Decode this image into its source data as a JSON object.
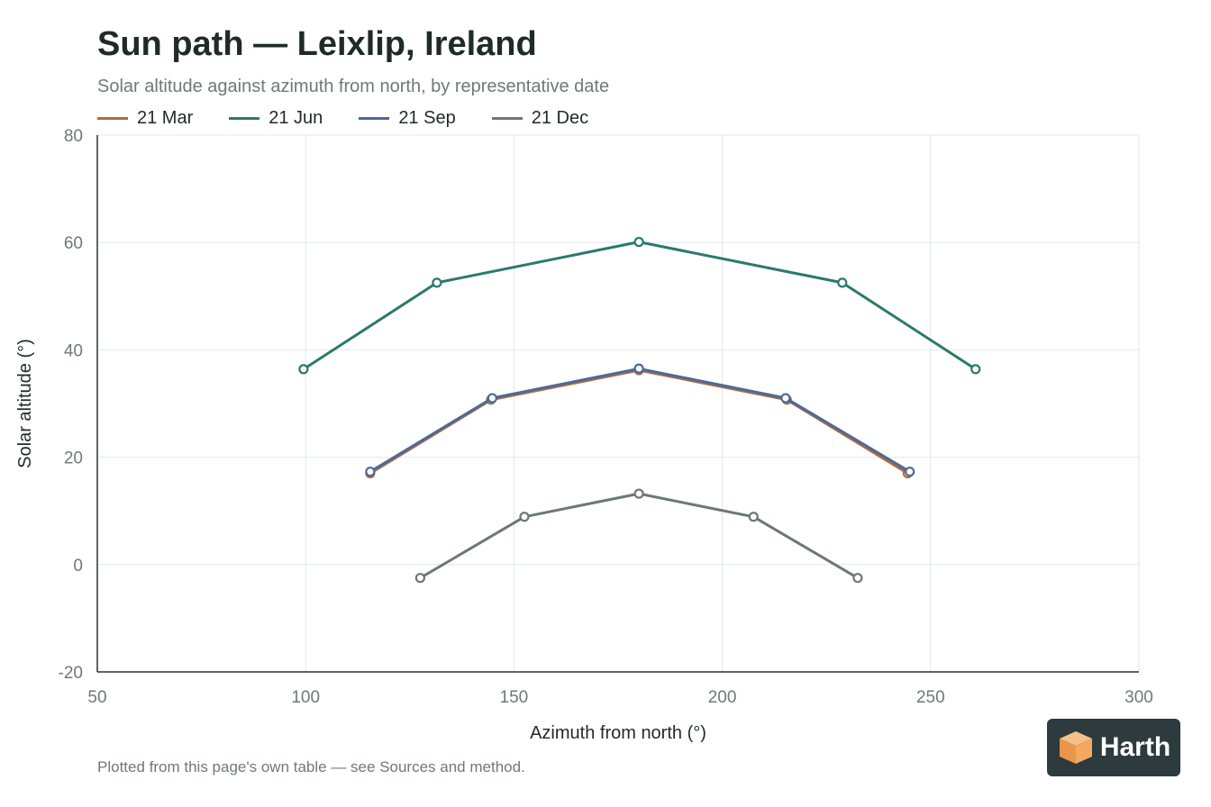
{
  "colors": {
    "mar": "#b4693a",
    "jun": "#2a7a6c",
    "sep": "#4a6a9a",
    "dec": "#6c7873",
    "grid": "#e4e8e7",
    "axis": "#2b3431",
    "tick_text": "#6c7b76"
  },
  "chart_data": {
    "type": "line",
    "title": "Sun path — Leixlip, Ireland",
    "subtitle": "Solar altitude against azimuth from north, by representative date",
    "xlabel": "Azimuth from north (°)",
    "ylabel": "Solar altitude (°)",
    "xlim": [
      50,
      300
    ],
    "ylim": [
      -20,
      80
    ],
    "x_ticks": [
      "50",
      "100",
      "150",
      "200",
      "250",
      "300"
    ],
    "y_ticks": [
      "-20",
      "0",
      "20",
      "40",
      "60",
      "80"
    ],
    "grid": true,
    "legend_position": "top-left",
    "series": [
      {
        "name": "21 Mar",
        "color_key": "mar",
        "points": [
          [
            115.5,
            17.0
          ],
          [
            144.5,
            30.7
          ],
          [
            180,
            36.2
          ],
          [
            215.5,
            30.7
          ],
          [
            244.5,
            17.0
          ]
        ]
      },
      {
        "name": "21 Jun",
        "color_key": "jun",
        "points": [
          [
            99.5,
            36.4
          ],
          [
            131.5,
            52.5
          ],
          [
            180,
            60.1
          ],
          [
            228.8,
            52.5
          ],
          [
            260.8,
            36.4
          ]
        ]
      },
      {
        "name": "21 Sep",
        "color_key": "sep",
        "points": [
          [
            115.5,
            17.3
          ],
          [
            144.8,
            31.0
          ],
          [
            180,
            36.5
          ],
          [
            215.2,
            31.0
          ],
          [
            245,
            17.3
          ]
        ]
      },
      {
        "name": "21 Dec",
        "color_key": "dec",
        "points": [
          [
            127.5,
            -2.5
          ],
          [
            152.5,
            8.9
          ],
          [
            180,
            13.2
          ],
          [
            207.5,
            8.9
          ],
          [
            232.5,
            -2.5
          ]
        ]
      }
    ]
  },
  "legend": [
    {
      "label": "21 Mar",
      "color_key": "mar"
    },
    {
      "label": "21 Jun",
      "color_key": "jun"
    },
    {
      "label": "21 Sep",
      "color_key": "sep"
    },
    {
      "label": "21 Dec",
      "color_key": "dec"
    }
  ],
  "footnote": "Plotted from this page's own table — see Sources and method.",
  "logo": {
    "text": "Harth",
    "icon": "cube-icon"
  }
}
